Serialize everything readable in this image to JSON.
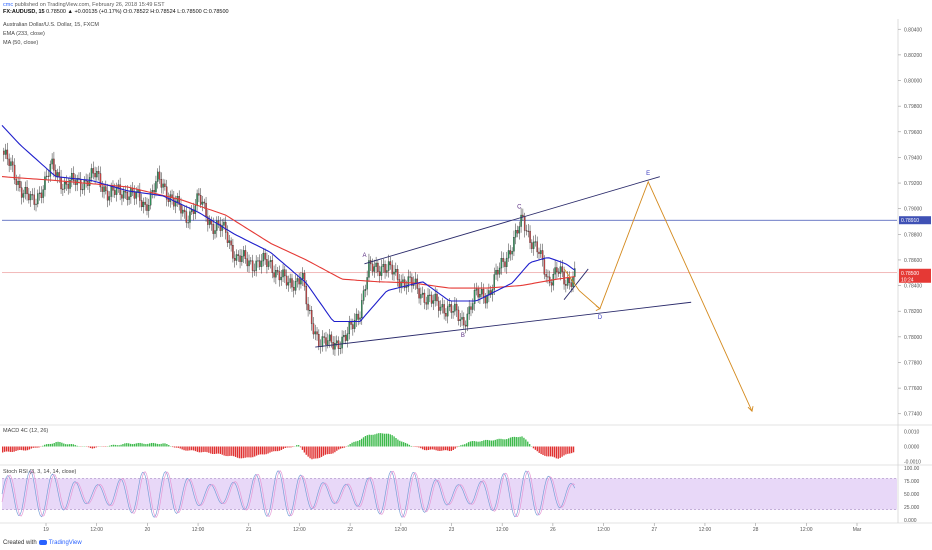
{
  "header": {
    "user": "cmc",
    "published_text": "published on TradingView.com, February 26, 2018 15:49 EST",
    "symbol": "FX:AUDUSD, 15",
    "ohlc_text": "0.78500 ▲ +0.00135 (+0.17%) O:0.78522 H:0.78524 L:0.78500 C:0.78500"
  },
  "legend": {
    "instrument": "Australian Dollar/U.S. Dollar, 15, FXCM",
    "ema": "EMA (233, close)",
    "ma": "MA (50, close)",
    "macd": "MACD 4C (12, 26)",
    "stoch": "Stoch RSI (3, 3, 14, 14, close)"
  },
  "footer": {
    "created_with": "Created with",
    "brand": "TradingView"
  },
  "colors": {
    "up": "#2e9c5e",
    "down": "#d64545",
    "ema": "#e53935",
    "ma": "#1f1fcc",
    "channel": "#2b2b6b",
    "projection": "#d48a1e",
    "hline": "#3f51b5",
    "macd_up": "#3cb94a",
    "macd_down": "#e03030",
    "stoch_fill": "#e8d8f8",
    "stoch_k": "#7b9fd8",
    "stoch_d": "#e69ad6"
  },
  "chart_data": {
    "type": "candlestick",
    "y_axis_ticks": [
      "0.80400",
      "0.80200",
      "0.80000",
      "0.79800",
      "0.79600",
      "0.79400",
      "0.79200",
      "0.79000",
      "0.78800",
      "0.78600",
      "0.78400",
      "0.78200",
      "0.78000",
      "0.77800",
      "0.77600",
      "0.77400"
    ],
    "ylim": [
      0.7732,
      0.8048
    ],
    "x_axis_ticks": [
      "19",
      "12:00",
      "20",
      "12:00",
      "21",
      "12:00",
      "22",
      "12:00",
      "23",
      "12:00",
      "26",
      "12:00",
      "27",
      "12:00",
      "28",
      "12:00",
      "Mar"
    ],
    "price_labels": {
      "hline": "0.78910",
      "last": "0.78500",
      "timer": "10:24"
    },
    "hline_value": 0.7891,
    "macd_axis_ticks": [
      "0.0010",
      "0.0000",
      "-0.0010"
    ],
    "stoch_axis_ticks": [
      "100.00",
      "75.000",
      "50.000",
      "25.000",
      "0.000"
    ],
    "wave_labels": [
      "A",
      "B",
      "C",
      "D",
      "E"
    ],
    "wave_points": [
      {
        "label": "A",
        "t": 0.405,
        "p": 0.7859
      },
      {
        "label": "B",
        "t": 0.515,
        "p": 0.7806
      },
      {
        "label": "C",
        "t": 0.578,
        "p": 0.7897
      },
      {
        "label": "D",
        "t": 0.668,
        "p": 0.782
      },
      {
        "label": "E",
        "t": 0.722,
        "p": 0.7923
      }
    ],
    "channel_upper": [
      {
        "t": 0.405,
        "p": 0.7857
      },
      {
        "t": 0.735,
        "p": 0.7925
      }
    ],
    "channel_lower": [
      {
        "t": 0.35,
        "p": 0.7792
      },
      {
        "t": 0.77,
        "p": 0.7827
      }
    ],
    "projection_path": [
      {
        "t": 0.628,
        "p": 0.7853
      },
      {
        "t": 0.645,
        "p": 0.7836
      },
      {
        "t": 0.668,
        "p": 0.7822
      },
      {
        "t": 0.722,
        "p": 0.7921
      },
      {
        "t": 0.838,
        "p": 0.7742
      }
    ],
    "keypoints_price": [
      [
        0,
        0.7945
      ],
      [
        0.02,
        0.7918
      ],
      [
        0.035,
        0.7903
      ],
      [
        0.055,
        0.7932
      ],
      [
        0.07,
        0.7919
      ],
      [
        0.09,
        0.7921
      ],
      [
        0.105,
        0.7926
      ],
      [
        0.12,
        0.7911
      ],
      [
        0.14,
        0.7914
      ],
      [
        0.16,
        0.7903
      ],
      [
        0.175,
        0.7922
      ],
      [
        0.19,
        0.7908
      ],
      [
        0.205,
        0.7893
      ],
      [
        0.22,
        0.7907
      ],
      [
        0.235,
        0.7887
      ],
      [
        0.25,
        0.7882
      ],
      [
        0.262,
        0.7861
      ],
      [
        0.28,
        0.7858
      ],
      [
        0.3,
        0.7857
      ],
      [
        0.32,
        0.784
      ],
      [
        0.335,
        0.7848
      ],
      [
        0.342,
        0.7818
      ],
      [
        0.355,
        0.7797
      ],
      [
        0.365,
        0.7794
      ],
      [
        0.385,
        0.7799
      ],
      [
        0.4,
        0.7822
      ],
      [
        0.41,
        0.7852
      ],
      [
        0.425,
        0.7856
      ],
      [
        0.445,
        0.7845
      ],
      [
        0.46,
        0.784
      ],
      [
        0.48,
        0.7827
      ],
      [
        0.5,
        0.7822
      ],
      [
        0.515,
        0.7812
      ],
      [
        0.53,
        0.7832
      ],
      [
        0.545,
        0.7835
      ],
      [
        0.56,
        0.7859
      ],
      [
        0.572,
        0.7874
      ],
      [
        0.582,
        0.7892
      ],
      [
        0.59,
        0.7878
      ],
      [
        0.6,
        0.7864
      ],
      [
        0.61,
        0.7845
      ],
      [
        0.62,
        0.7852
      ],
      [
        0.63,
        0.7841
      ],
      [
        0.64,
        0.7851
      ]
    ],
    "keypoints_ema": [
      [
        0,
        0.7925
      ],
      [
        0.06,
        0.7922
      ],
      [
        0.14,
        0.7917
      ],
      [
        0.2,
        0.7907
      ],
      [
        0.25,
        0.7895
      ],
      [
        0.3,
        0.7873
      ],
      [
        0.34,
        0.786
      ],
      [
        0.38,
        0.7845
      ],
      [
        0.42,
        0.7843
      ],
      [
        0.46,
        0.7842
      ],
      [
        0.5,
        0.7838
      ],
      [
        0.54,
        0.7838
      ],
      [
        0.58,
        0.784
      ],
      [
        0.62,
        0.7845
      ],
      [
        0.64,
        0.7847
      ]
    ],
    "keypoints_ma": [
      [
        0,
        0.7965
      ],
      [
        0.02,
        0.795
      ],
      [
        0.06,
        0.7925
      ],
      [
        0.1,
        0.7922
      ],
      [
        0.14,
        0.7914
      ],
      [
        0.18,
        0.791
      ],
      [
        0.22,
        0.7897
      ],
      [
        0.26,
        0.788
      ],
      [
        0.3,
        0.7866
      ],
      [
        0.34,
        0.7842
      ],
      [
        0.37,
        0.7812
      ],
      [
        0.4,
        0.7812
      ],
      [
        0.43,
        0.7836
      ],
      [
        0.47,
        0.7843
      ],
      [
        0.5,
        0.7828
      ],
      [
        0.53,
        0.7828
      ],
      [
        0.57,
        0.7842
      ],
      [
        0.59,
        0.7858
      ],
      [
        0.61,
        0.7862
      ],
      [
        0.63,
        0.7857
      ],
      [
        0.64,
        0.7852
      ]
    ],
    "keypoints_macd": [
      [
        0,
        -0.0004
      ],
      [
        0.03,
        -0.0002
      ],
      [
        0.06,
        0.0003
      ],
      [
        0.1,
        -0.0001
      ],
      [
        0.14,
        0.0002
      ],
      [
        0.18,
        0.0002
      ],
      [
        0.2,
        -0.0002
      ],
      [
        0.24,
        -0.0005
      ],
      [
        0.27,
        -0.0008
      ],
      [
        0.3,
        -0.0004
      ],
      [
        0.33,
        0.0001
      ],
      [
        0.345,
        -0.0009
      ],
      [
        0.37,
        -0.0004
      ],
      [
        0.39,
        0.0002
      ],
      [
        0.41,
        0.0008
      ],
      [
        0.43,
        0.0009
      ],
      [
        0.45,
        0.0002
      ],
      [
        0.47,
        -0.0002
      ],
      [
        0.5,
        -0.0003
      ],
      [
        0.52,
        0.0003
      ],
      [
        0.56,
        0.0005
      ],
      [
        0.58,
        0.0007
      ],
      [
        0.6,
        -0.0005
      ],
      [
        0.62,
        -0.0008
      ],
      [
        0.64,
        -0.0003
      ]
    ]
  }
}
